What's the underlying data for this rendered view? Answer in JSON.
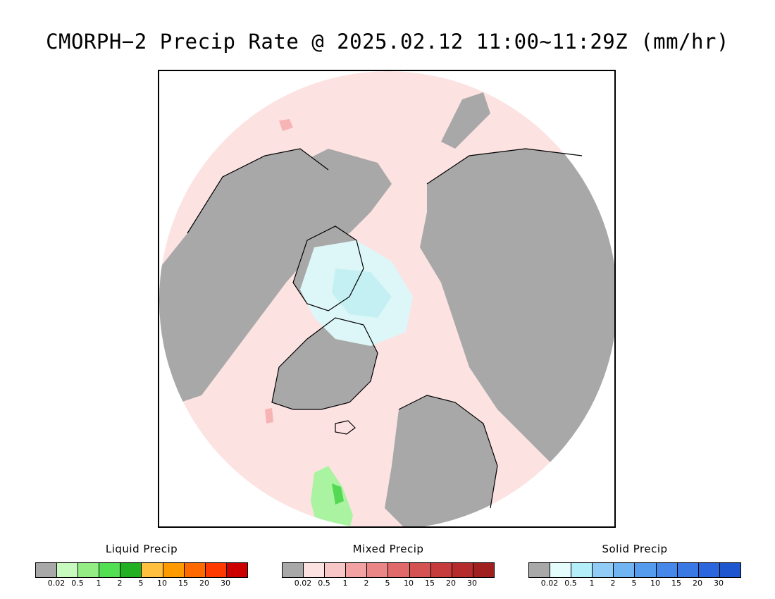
{
  "title": "CMORPH−2 Precip Rate @ 2025.02.12 11:00~11:29Z (mm/hr)",
  "map": {
    "colors": {
      "land": "#a8a8a8",
      "mixed_trace": "#fde2e2",
      "solid_trace": "#ddf7f8",
      "solid_light": "#c4f0f4",
      "liquid_light": "#aaf3a0",
      "liquid_medium": "#55d955",
      "mixed_light": "#f6b4b4",
      "coastline": "#000000",
      "background": "#ffffff"
    }
  },
  "legends": [
    {
      "title": "Liquid Precip",
      "colors": [
        "#a8a8a8",
        "#c8fac0",
        "#93ec84",
        "#52e052",
        "#22b022",
        "#ffc040",
        "#ff9a00",
        "#ff6a00",
        "#ff3a00",
        "#cc0000"
      ],
      "ticks": [
        "0.02",
        "0.5",
        "1",
        "2",
        "5",
        "10",
        "15",
        "20",
        "30"
      ]
    },
    {
      "title": "Mixed Precip",
      "colors": [
        "#a8a8a8",
        "#fde2e2",
        "#f8c6c6",
        "#f2a2a2",
        "#ea8686",
        "#e06a6a",
        "#d45252",
        "#c63c3c",
        "#b42c2c",
        "#a02020"
      ],
      "ticks": [
        "0.02",
        "0.5",
        "1",
        "2",
        "5",
        "10",
        "15",
        "20",
        "30"
      ]
    },
    {
      "title": "Solid Precip",
      "colors": [
        "#a8a8a8",
        "#e4fcfc",
        "#b4eef8",
        "#90ccf6",
        "#70b4f2",
        "#569cee",
        "#4688ea",
        "#3a78e4",
        "#2c66dc",
        "#1e56d0"
      ],
      "ticks": [
        "0.02",
        "0.5",
        "1",
        "2",
        "5",
        "10",
        "15",
        "20",
        "30"
      ]
    }
  ]
}
